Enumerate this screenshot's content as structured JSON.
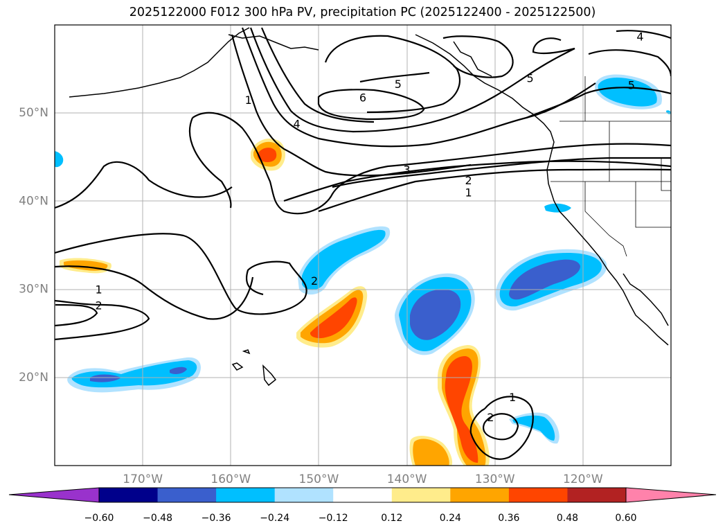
{
  "title": "2025122000 F012 300 hPa PV, precipitation PC (2025122400 - 2025122500)",
  "map": {
    "lon_range": [
      -180,
      -110
    ],
    "lat_range": [
      10,
      60
    ],
    "lat_ticks": [
      {
        "value": 20,
        "label": "20°N"
      },
      {
        "value": 30,
        "label": "30°N"
      },
      {
        "value": 40,
        "label": "40°N"
      },
      {
        "value": 50,
        "label": "50°N"
      }
    ],
    "lon_ticks": [
      {
        "value": -170,
        "label": "170°W"
      },
      {
        "value": -160,
        "label": "160°W"
      },
      {
        "value": -150,
        "label": "150°W"
      },
      {
        "value": -140,
        "label": "140°W"
      },
      {
        "value": -130,
        "label": "130°W"
      },
      {
        "value": -120,
        "label": "120°W"
      }
    ],
    "contour_labels": [
      {
        "text": "1",
        "lon": -158,
        "lat": 51.5
      },
      {
        "text": "4",
        "lon": -152.5,
        "lat": 48.8
      },
      {
        "text": "6",
        "lon": -145,
        "lat": 51.8
      },
      {
        "text": "5",
        "lon": -141,
        "lat": 53.3
      },
      {
        "text": "5",
        "lon": -126,
        "lat": 54
      },
      {
        "text": "4",
        "lon": -113.5,
        "lat": 58.7
      },
      {
        "text": "5",
        "lon": -114.5,
        "lat": 53.2
      },
      {
        "text": "3",
        "lon": -140,
        "lat": 43.6
      },
      {
        "text": "2",
        "lon": -133,
        "lat": 42.4
      },
      {
        "text": "1",
        "lon": -133,
        "lat": 41
      },
      {
        "text": "1",
        "lon": -175,
        "lat": 30
      },
      {
        "text": "2",
        "lon": -175,
        "lat": 28.2
      },
      {
        "text": "2",
        "lon": -150.5,
        "lat": 31
      },
      {
        "text": "1",
        "lon": -128,
        "lat": 17.8
      },
      {
        "text": "2",
        "lon": -130.5,
        "lat": 15.5
      }
    ]
  },
  "colorbar": {
    "levels": [
      "−0.60",
      "−0.48",
      "−0.36",
      "−0.24",
      "−0.12",
      "0.12",
      "0.24",
      "0.36",
      "0.48",
      "0.60"
    ],
    "colors": [
      "#9932cc",
      "#00008b",
      "#3a5fcd",
      "#00bfff",
      "#b0e2ff",
      "#ffffff",
      "#ffec8b",
      "#ffa500",
      "#ff4500",
      "#b22222",
      "#ff82ab"
    ]
  }
}
